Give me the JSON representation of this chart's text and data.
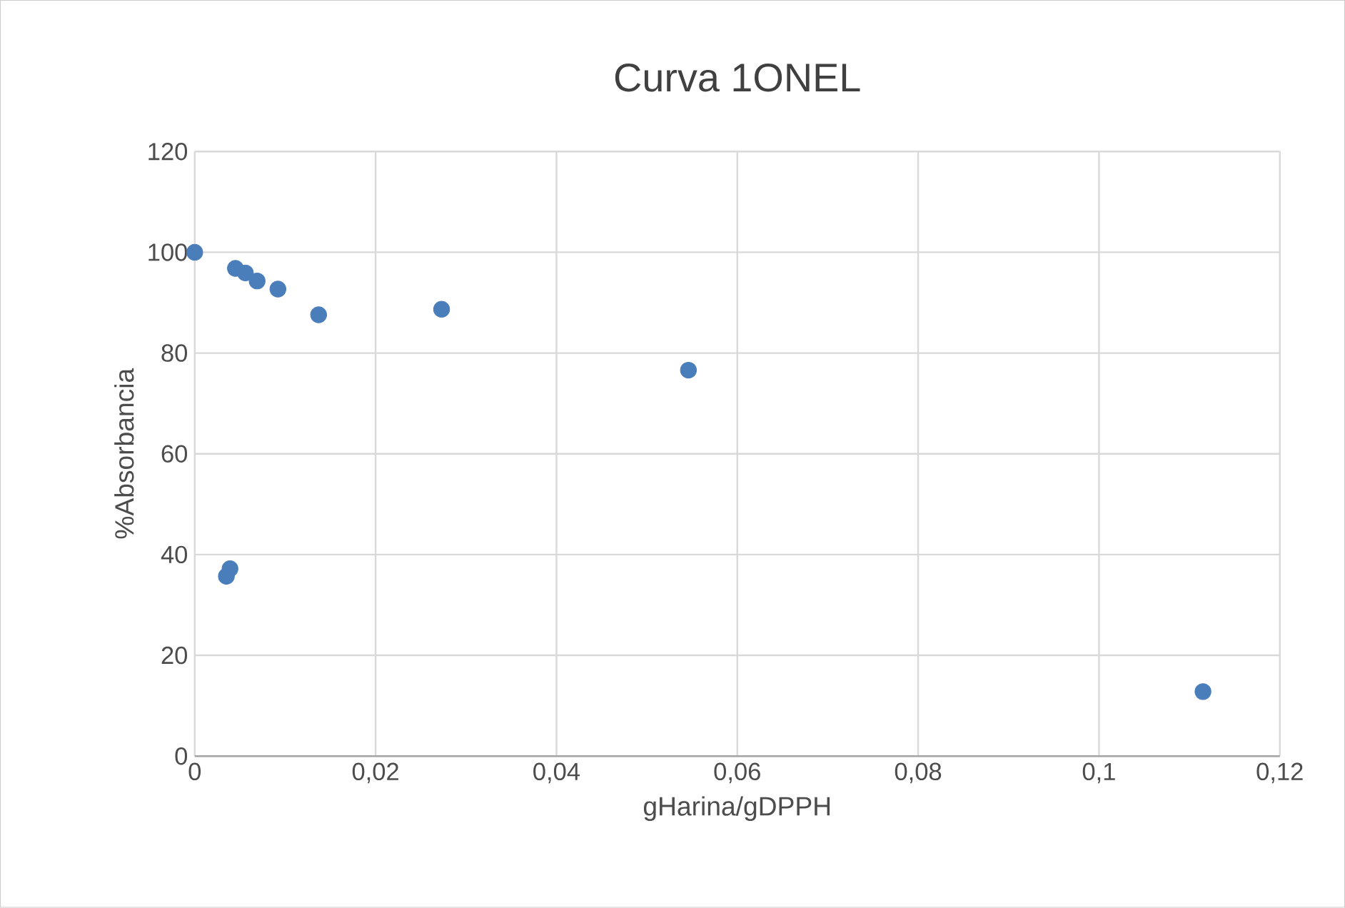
{
  "chart_data": {
    "type": "scatter",
    "title": "Curva 1ONEL",
    "xlabel": "gHarina/gDPPH",
    "ylabel": "%Absorbancia",
    "x": [
      0,
      0.0045,
      0.0056,
      0.0069,
      0.0092,
      0.0137,
      0.0273,
      0.0546,
      0.1115,
      0.0035,
      0.0039
    ],
    "series": [
      {
        "color": "#4a7ebb",
        "values": [
          100,
          96.8,
          95.9,
          94.3,
          92.7,
          87.6,
          88.7,
          76.6,
          12.8,
          35.7,
          37.2
        ]
      }
    ],
    "xlim": [
      0,
      0.12
    ],
    "ylim": [
      0,
      120
    ],
    "xticks": [
      {
        "value": 0,
        "label": "0"
      },
      {
        "value": 0.02,
        "label": "0,02"
      },
      {
        "value": 0.04,
        "label": "0,04"
      },
      {
        "value": 0.06,
        "label": "0,06"
      },
      {
        "value": 0.08,
        "label": "0,08"
      },
      {
        "value": 0.1,
        "label": "0,1"
      },
      {
        "value": 0.12,
        "label": "0,12"
      }
    ],
    "yticks": [
      0,
      20,
      40,
      60,
      80,
      100,
      120
    ],
    "grid": true
  }
}
